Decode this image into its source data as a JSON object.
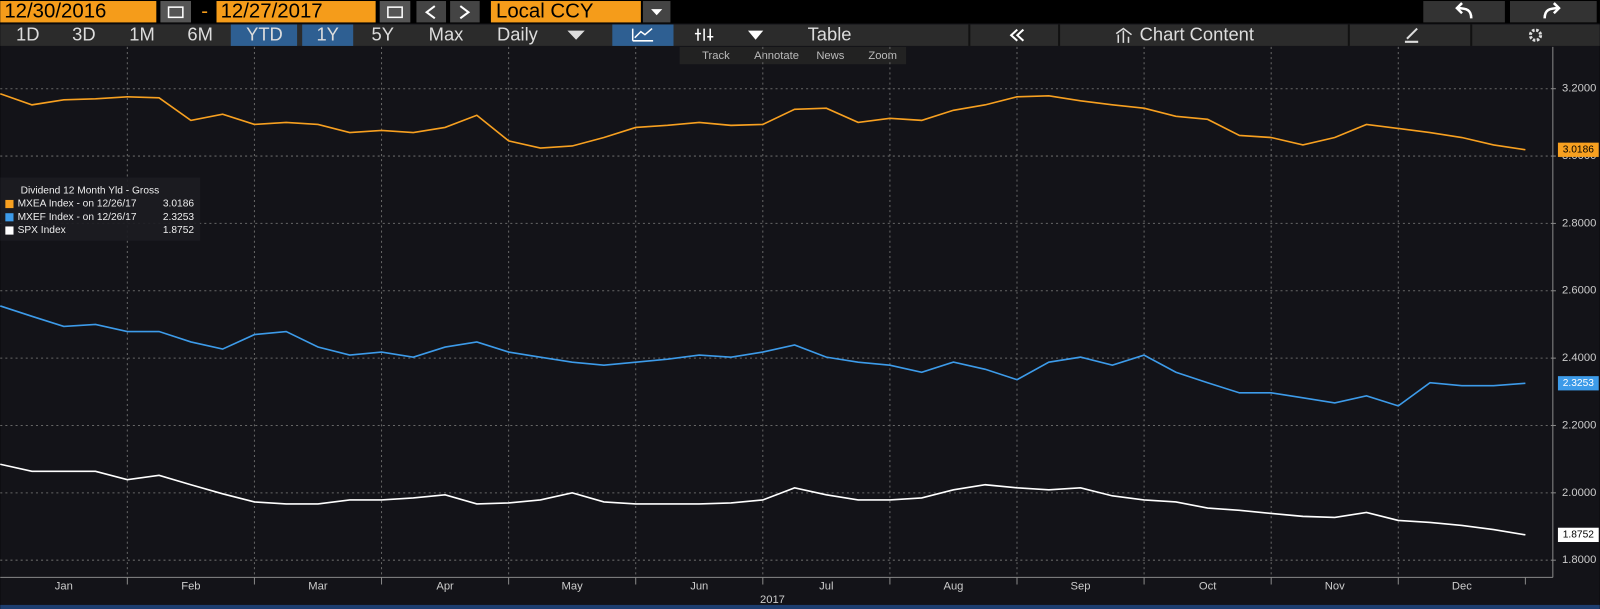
{
  "toolbar": {
    "start_date": "12/30/2016",
    "date_separator": "-",
    "end_date": "12/27/2017",
    "currency": "Local CCY",
    "periods": [
      "1D",
      "3D",
      "1M",
      "6M",
      "YTD",
      "1Y",
      "5Y",
      "Max"
    ],
    "frequency": "Daily",
    "table": "Table",
    "chart_content": "Chart Content",
    "tools": [
      "Track",
      "Annotate",
      "News",
      "Zoom"
    ]
  },
  "chart_data": {
    "type": "line",
    "legend_title": "Dividend 12 Month Yld - Gross",
    "xlabel": "2017",
    "x": [
      0,
      0.25,
      0.5,
      0.75,
      1,
      1.25,
      1.5,
      1.75,
      2,
      2.25,
      2.5,
      2.75,
      3,
      3.25,
      3.5,
      3.75,
      4,
      4.25,
      4.5,
      4.75,
      5,
      5.25,
      5.5,
      5.75,
      6,
      6.25,
      6.5,
      6.75,
      7,
      7.25,
      7.5,
      7.75,
      8,
      8.25,
      8.5,
      8.75,
      9,
      9.25,
      9.5,
      9.75,
      10,
      10.25,
      10.5,
      10.75,
      11,
      11.25,
      11.5,
      11.75,
      12
    ],
    "xlim": [
      0,
      12.2
    ],
    "xticks": [
      {
        "value": 0.5,
        "label": "Jan"
      },
      {
        "value": 1.5,
        "label": "Feb"
      },
      {
        "value": 2.5,
        "label": "Mar"
      },
      {
        "value": 3.5,
        "label": "Apr"
      },
      {
        "value": 4.5,
        "label": "May"
      },
      {
        "value": 5.5,
        "label": "Jun"
      },
      {
        "value": 6.5,
        "label": "Jul"
      },
      {
        "value": 7.5,
        "label": "Aug"
      },
      {
        "value": 8.5,
        "label": "Sep"
      },
      {
        "value": 9.5,
        "label": "Oct"
      },
      {
        "value": 10.5,
        "label": "Nov"
      },
      {
        "value": 11.5,
        "label": "Dec"
      }
    ],
    "ylim": [
      1.752,
      3.318
    ],
    "yticks": [
      {
        "value": 1.8,
        "label": "1.8000"
      },
      {
        "value": 2.0,
        "label": "2.0000"
      },
      {
        "value": 2.2,
        "label": "2.2000"
      },
      {
        "value": 2.4,
        "label": "2.4000"
      },
      {
        "value": 2.6,
        "label": "2.6000"
      },
      {
        "value": 2.8,
        "label": "2.8000"
      },
      {
        "value": 3.0,
        "label": "3.0000"
      },
      {
        "value": 3.2,
        "label": "3.2000"
      }
    ],
    "grid": true,
    "legend": "left",
    "series": [
      {
        "name": "MXEA Index - on 12/26/17",
        "color": "#f7a020",
        "values": [
          3.185,
          3.152,
          3.167,
          3.17,
          3.176,
          3.173,
          3.106,
          3.124,
          3.094,
          3.1,
          3.094,
          3.07,
          3.076,
          3.07,
          3.085,
          3.121,
          3.045,
          3.024,
          3.03,
          3.055,
          3.085,
          3.091,
          3.1,
          3.091,
          3.094,
          3.139,
          3.142,
          3.1,
          3.112,
          3.106,
          3.136,
          3.152,
          3.176,
          3.179,
          3.164,
          3.152,
          3.142,
          3.118,
          3.109,
          3.061,
          3.055,
          3.033,
          3.055,
          3.094,
          3.082,
          3.07,
          3.055,
          3.033,
          3.0186
        ]
      },
      {
        "name": "MXEF Index - on 12/26/17",
        "color": "#3d9be9",
        "values": [
          2.555,
          2.524,
          2.494,
          2.5,
          2.479,
          2.479,
          2.448,
          2.427,
          2.47,
          2.479,
          2.433,
          2.409,
          2.418,
          2.403,
          2.433,
          2.448,
          2.418,
          2.403,
          2.388,
          2.379,
          2.388,
          2.397,
          2.409,
          2.403,
          2.418,
          2.439,
          2.403,
          2.388,
          2.379,
          2.358,
          2.388,
          2.367,
          2.336,
          2.388,
          2.403,
          2.379,
          2.409,
          2.358,
          2.327,
          2.297,
          2.297,
          2.282,
          2.267,
          2.288,
          2.258,
          2.327,
          2.318,
          2.318,
          2.3253
        ]
      },
      {
        "name": "SPX Index",
        "color": "#ffffff",
        "values": [
          2.085,
          2.064,
          2.064,
          2.064,
          2.039,
          2.052,
          2.024,
          1.997,
          1.973,
          1.967,
          1.967,
          1.979,
          1.979,
          1.985,
          1.994,
          1.967,
          1.97,
          1.979,
          2.0,
          1.973,
          1.967,
          1.967,
          1.967,
          1.97,
          1.979,
          2.015,
          1.994,
          1.979,
          1.979,
          1.985,
          2.009,
          2.024,
          2.015,
          2.009,
          2.015,
          1.991,
          1.979,
          1.973,
          1.955,
          1.948,
          1.939,
          1.93,
          1.927,
          1.942,
          1.918,
          1.912,
          1.903,
          1.891,
          1.8752
        ]
      }
    ]
  }
}
